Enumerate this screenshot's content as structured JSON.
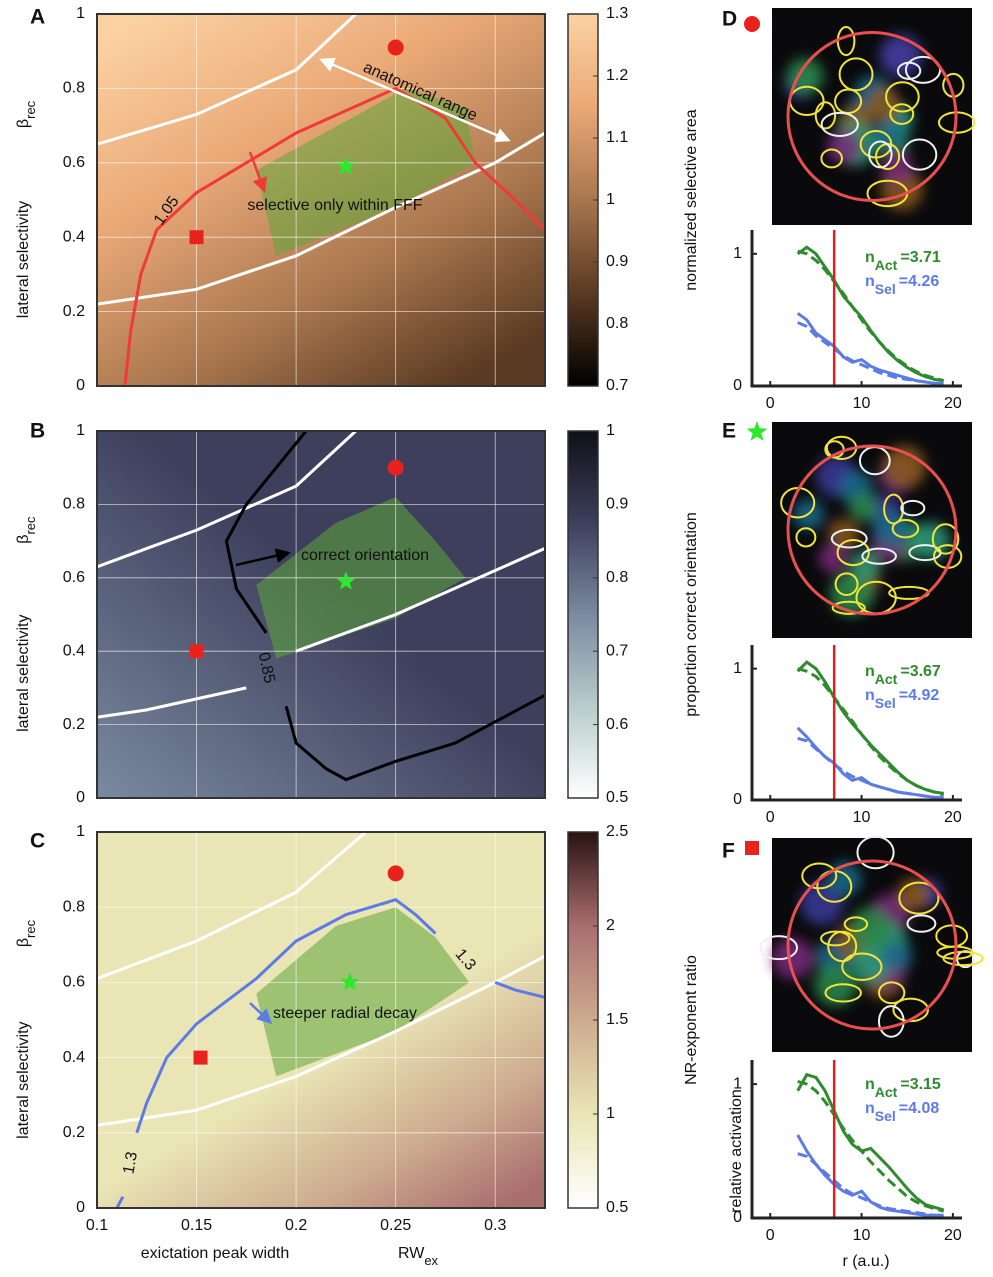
{
  "chart_data": [
    {
      "type": "heatmap",
      "panel_label": "A",
      "xlim": [
        0.1,
        0.325
      ],
      "xgrid": [
        0.15,
        0.2,
        0.25,
        0.3
      ],
      "ylim": [
        0,
        1
      ],
      "yticks": [
        0,
        0.2,
        0.4,
        0.6,
        0.8,
        1
      ],
      "ylabel": "lateral selectivity",
      "ylabel_symbol": "β",
      "ylabel_sub": "rec",
      "clim": [
        0.7,
        1.3
      ],
      "cticks": [
        0.7,
        0.8,
        0.9,
        1,
        1.1,
        1.2,
        1.3
      ],
      "cmap": [
        "#000000",
        "#5a3a22",
        "#a8764e",
        "#eaa977",
        "#fcd2a2"
      ],
      "colorbar_label": "normalized selective area",
      "region": {
        "color": "#5fa83a",
        "x": [
          0.18,
          0.255,
          0.285,
          0.29,
          0.25,
          0.19
        ],
        "y": [
          0.58,
          0.8,
          0.75,
          0.6,
          0.48,
          0.35
        ]
      },
      "boundaries": [
        {
          "color": "#ffffff",
          "x": [
            0.1,
            0.15,
            0.2,
            0.23
          ],
          "y": [
            0.65,
            0.73,
            0.85,
            1.0
          ]
        },
        {
          "color": "#ffffff",
          "x": [
            0.1,
            0.15,
            0.2,
            0.25,
            0.3,
            0.325
          ],
          "y": [
            0.22,
            0.26,
            0.35,
            0.48,
            0.6,
            0.68
          ]
        }
      ],
      "contour": {
        "level": 1.05,
        "color": "#f03a3a",
        "x": [
          0.114,
          0.117,
          0.122,
          0.13,
          0.15,
          0.2,
          0.25,
          0.275,
          0.29,
          0.31,
          0.325
        ],
        "y": [
          0,
          0.15,
          0.3,
          0.42,
          0.52,
          0.68,
          0.8,
          0.72,
          0.6,
          0.5,
          0.42
        ]
      },
      "markers": [
        {
          "shape": "circle",
          "color": "#e8231e",
          "x": 0.25,
          "y": 0.91
        },
        {
          "shape": "square",
          "color": "#e8231e",
          "x": 0.15,
          "y": 0.4
        },
        {
          "shape": "star",
          "color": "#2ee82e",
          "x": 0.225,
          "y": 0.59
        }
      ],
      "annotations": [
        "anatomical range",
        "selective only within FFF"
      ]
    },
    {
      "type": "heatmap",
      "panel_label": "B",
      "xlim": [
        0.1,
        0.325
      ],
      "xgrid": [
        0.15,
        0.2,
        0.25,
        0.3
      ],
      "ylim": [
        0,
        1
      ],
      "yticks": [
        0,
        0.2,
        0.4,
        0.6,
        0.8,
        1
      ],
      "ylabel": "lateral selectivity",
      "ylabel_symbol": "β",
      "ylabel_sub": "rec",
      "clim": [
        0.5,
        1
      ],
      "cticks": [
        0.5,
        0.6,
        0.7,
        0.8,
        0.9,
        1
      ],
      "cmap": [
        "#ffffff",
        "#b7cccb",
        "#7a8aa0",
        "#3d3f5c",
        "#101018"
      ],
      "colorbar_label": "proportion correct orientation",
      "region": {
        "color": "#5fa83a",
        "x": [
          0.18,
          0.22,
          0.25,
          0.27,
          0.285,
          0.25,
          0.19
        ],
        "y": [
          0.58,
          0.75,
          0.82,
          0.7,
          0.6,
          0.49,
          0.38
        ]
      },
      "boundaries": [
        {
          "color": "#ffffff",
          "x": [
            0.1,
            0.15,
            0.2,
            0.23
          ],
          "y": [
            0.63,
            0.73,
            0.85,
            1.0
          ]
        },
        {
          "color": "#ffffff",
          "x": [
            0.1,
            0.125,
            0.15,
            0.175,
            null,
            0.2,
            0.25,
            0.3,
            0.325
          ],
          "y": [
            0.22,
            0.24,
            0.27,
            0.3,
            null,
            0.4,
            0.5,
            0.62,
            0.68
          ]
        }
      ],
      "contour": {
        "level": 0.85,
        "color": "#000000",
        "x": [
          0.205,
          0.19,
          0.175,
          0.165,
          0.17,
          0.185,
          null,
          0.195,
          0.2,
          0.215,
          0.225,
          0.25,
          0.28,
          0.325
        ],
        "y": [
          1.0,
          0.9,
          0.8,
          0.7,
          0.57,
          0.45,
          null,
          0.25,
          0.15,
          0.08,
          0.05,
          0.1,
          0.15,
          0.28
        ]
      },
      "markers": [
        {
          "shape": "circle",
          "color": "#e8231e",
          "x": 0.25,
          "y": 0.9
        },
        {
          "shape": "square",
          "color": "#e8231e",
          "x": 0.15,
          "y": 0.4
        },
        {
          "shape": "star",
          "color": "#2ee82e",
          "x": 0.225,
          "y": 0.59
        }
      ],
      "annotations": [
        "correct orientation"
      ]
    },
    {
      "type": "heatmap",
      "panel_label": "C",
      "xlim": [
        0.1,
        0.325
      ],
      "xticks": [
        0.1,
        0.15,
        0.2,
        0.25,
        0.3
      ],
      "xlabel": "exictation peak width",
      "xlabel_symbol": "RW",
      "xlabel_sub": "ex",
      "ylim": [
        0,
        1
      ],
      "yticks": [
        0,
        0.2,
        0.4,
        0.6,
        0.8,
        1
      ],
      "ylabel": "lateral selectivity",
      "ylabel_symbol": "β",
      "ylabel_sub": "rec",
      "clim": [
        0.5,
        2.5
      ],
      "cticks": [
        0.5,
        1,
        1.5,
        2,
        2.5
      ],
      "cmap": [
        "#ffffff",
        "#e9e5b5",
        "#cdab8f",
        "#a96e6e",
        "#2a1212"
      ],
      "colorbar_label": "NR-exponent ratio",
      "region": {
        "color": "#5fa83a",
        "x": [
          0.18,
          0.22,
          0.25,
          0.27,
          0.287,
          0.25,
          0.19
        ],
        "y": [
          0.57,
          0.75,
          0.8,
          0.72,
          0.6,
          0.47,
          0.35
        ]
      },
      "boundaries": [
        {
          "color": "#ffffff",
          "x": [
            0.1,
            0.15,
            0.2,
            0.235
          ],
          "y": [
            0.61,
            0.71,
            0.84,
            1.0
          ]
        },
        {
          "color": "#ffffff",
          "x": [
            0.1,
            0.15,
            0.2,
            0.25,
            0.3,
            0.325
          ],
          "y": [
            0.22,
            0.26,
            0.35,
            0.47,
            0.6,
            0.67
          ]
        }
      ],
      "contour": {
        "level": 1.3,
        "color": "#5c7be6",
        "x": [
          0.11,
          0.113,
          null,
          0.12,
          0.125,
          0.135,
          0.15,
          0.165,
          0.18,
          0.2,
          0.225,
          0.25,
          0.26,
          0.27,
          null,
          0.3,
          0.31,
          0.325
        ],
        "y": [
          0,
          0.03,
          null,
          0.2,
          0.28,
          0.4,
          0.49,
          0.55,
          0.61,
          0.71,
          0.78,
          0.82,
          0.78,
          0.73,
          null,
          0.6,
          0.58,
          0.56
        ]
      },
      "markers": [
        {
          "shape": "circle",
          "color": "#e8231e",
          "x": 0.25,
          "y": 0.89
        },
        {
          "shape": "square",
          "color": "#e8231e",
          "x": 0.152,
          "y": 0.4
        },
        {
          "shape": "star",
          "color": "#2ee82e",
          "x": 0.227,
          "y": 0.6
        }
      ],
      "annotations": [
        "steeper radial decay"
      ]
    },
    {
      "type": "line",
      "panel_label": "D",
      "xlim": [
        -2,
        21
      ],
      "xticks": [
        0,
        10,
        20
      ],
      "ylim": [
        0,
        1.18
      ],
      "yticks": [
        0,
        1
      ],
      "vline": 7,
      "vline_color": "#e02020",
      "x": [
        3,
        4,
        5,
        6,
        7,
        8,
        9,
        10,
        11,
        12,
        13,
        14,
        15,
        16,
        17,
        18,
        19
      ],
      "series": [
        {
          "color": "#2e8b2e",
          "dash": false,
          "values": [
            1.0,
            1.05,
            1.0,
            0.9,
            0.8,
            0.68,
            0.6,
            0.52,
            0.42,
            0.33,
            0.25,
            0.19,
            0.14,
            0.1,
            0.07,
            0.05,
            0.04
          ]
        },
        {
          "color": "#2e8b2e",
          "dash": true,
          "values": [
            1.02,
            1.0,
            0.95,
            0.88,
            0.79,
            0.7,
            0.6,
            0.5,
            0.41,
            0.33,
            0.26,
            0.2,
            0.15,
            0.11,
            0.08,
            0.06,
            0.04
          ]
        },
        {
          "color": "#5c7be6",
          "dash": false,
          "values": [
            0.55,
            0.5,
            0.4,
            0.35,
            0.3,
            0.22,
            0.18,
            0.2,
            0.15,
            0.12,
            0.1,
            0.08,
            0.06,
            0.04,
            0.03,
            0.02,
            0.02
          ]
        },
        {
          "color": "#5c7be6",
          "dash": true,
          "values": [
            0.48,
            0.45,
            0.38,
            0.33,
            0.28,
            0.23,
            0.19,
            0.16,
            0.13,
            0.1,
            0.08,
            0.06,
            0.05,
            0.04,
            0.03,
            0.02,
            0.02
          ]
        }
      ],
      "stats": [
        {
          "color": "#2e8b2e",
          "symbol": "n",
          "sub": "Act",
          "text": "=3.71"
        },
        {
          "color": "#5c7be6",
          "symbol": "n",
          "sub": "Sel",
          "text": "=4.26"
        }
      ]
    },
    {
      "type": "line",
      "panel_label": "E",
      "xlim": [
        -2,
        21
      ],
      "xticks": [
        0,
        10,
        20
      ],
      "ylim": [
        0,
        1.18
      ],
      "yticks": [
        0,
        1
      ],
      "vline": 7,
      "vline_color": "#e02020",
      "x": [
        3,
        4,
        5,
        6,
        7,
        8,
        9,
        10,
        11,
        12,
        13,
        14,
        15,
        16,
        17,
        18,
        19
      ],
      "series": [
        {
          "color": "#2e8b2e",
          "dash": false,
          "values": [
            0.98,
            1.05,
            1.0,
            0.9,
            0.78,
            0.67,
            0.58,
            0.5,
            0.42,
            0.35,
            0.28,
            0.21,
            0.15,
            0.11,
            0.08,
            0.06,
            0.05
          ]
        },
        {
          "color": "#2e8b2e",
          "dash": true,
          "values": [
            1.0,
            0.98,
            0.94,
            0.87,
            0.78,
            0.69,
            0.6,
            0.5,
            0.41,
            0.33,
            0.26,
            0.2,
            0.15,
            0.11,
            0.08,
            0.06,
            0.04
          ]
        },
        {
          "color": "#5c7be6",
          "dash": false,
          "values": [
            0.55,
            0.48,
            0.4,
            0.33,
            0.28,
            0.2,
            0.15,
            0.17,
            0.12,
            0.1,
            0.08,
            0.06,
            0.05,
            0.04,
            0.03,
            0.02,
            0.02
          ]
        },
        {
          "color": "#5c7be6",
          "dash": true,
          "values": [
            0.47,
            0.45,
            0.39,
            0.33,
            0.27,
            0.22,
            0.18,
            0.15,
            0.12,
            0.1,
            0.08,
            0.06,
            0.05,
            0.04,
            0.03,
            0.02,
            0.02
          ]
        }
      ],
      "stats": [
        {
          "color": "#2e8b2e",
          "symbol": "n",
          "sub": "Act",
          "text": "=3.67"
        },
        {
          "color": "#5c7be6",
          "symbol": "n",
          "sub": "Sel",
          "text": "=4.92"
        }
      ]
    },
    {
      "type": "line",
      "panel_label": "F",
      "xlim": [
        -2,
        21
      ],
      "xticks": [
        0,
        10,
        20
      ],
      "ylim": [
        0,
        1.18
      ],
      "yticks": [
        0,
        1
      ],
      "xlabel": "r (a.u.)",
      "ylabel": "relative activation",
      "vline": 7,
      "vline_color": "#e02020",
      "x": [
        3,
        4,
        5,
        6,
        7,
        8,
        9,
        10,
        11,
        12,
        13,
        14,
        15,
        16,
        17,
        18,
        19
      ],
      "series": [
        {
          "color": "#2e8b2e",
          "dash": false,
          "values": [
            0.95,
            1.07,
            1.05,
            0.95,
            0.8,
            0.65,
            0.55,
            0.5,
            0.52,
            0.45,
            0.38,
            0.3,
            0.22,
            0.15,
            0.1,
            0.08,
            0.06
          ]
        },
        {
          "color": "#2e8b2e",
          "dash": true,
          "values": [
            1.02,
            1.0,
            0.95,
            0.87,
            0.77,
            0.67,
            0.58,
            0.5,
            0.42,
            0.35,
            0.28,
            0.22,
            0.16,
            0.12,
            0.09,
            0.07,
            0.05
          ]
        },
        {
          "color": "#5c7be6",
          "dash": false,
          "values": [
            0.62,
            0.5,
            0.4,
            0.32,
            0.25,
            0.2,
            0.17,
            0.2,
            0.12,
            0.08,
            0.06,
            0.05,
            0.04,
            0.03,
            0.02,
            0.02,
            0.02
          ]
        },
        {
          "color": "#5c7be6",
          "dash": true,
          "values": [
            0.48,
            0.46,
            0.4,
            0.34,
            0.28,
            0.22,
            0.18,
            0.15,
            0.12,
            0.09,
            0.07,
            0.06,
            0.05,
            0.04,
            0.03,
            0.02,
            0.02
          ]
        }
      ],
      "stats": [
        {
          "color": "#2e8b2e",
          "symbol": "n",
          "sub": "Act",
          "text": "=3.15"
        },
        {
          "color": "#5c7be6",
          "symbol": "n",
          "sub": "Sel",
          "text": "=4.08"
        }
      ]
    }
  ]
}
